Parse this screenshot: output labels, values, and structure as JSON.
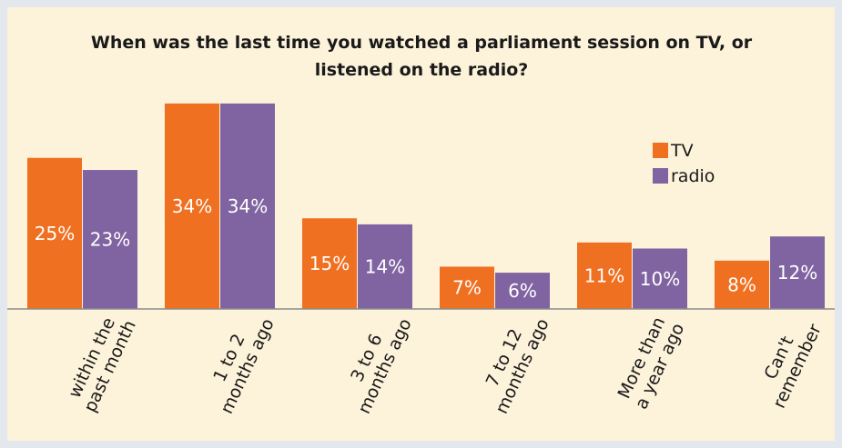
{
  "colors": {
    "frame_bg": "#e3e8ee",
    "panel_bg": "#fdf2da",
    "tv": "#f07022",
    "radio": "#8064a2",
    "axis": "#8c8c8c",
    "text": "#1a1a1a",
    "value_text": "#ffffff"
  },
  "chart_data": {
    "type": "bar",
    "title": "When was the last time you watched a parliament session on TV, or listened on the radio?",
    "categories": [
      [
        "within the",
        "past month"
      ],
      [
        "1 to 2",
        "months ago"
      ],
      [
        "3 to 6",
        "months ago"
      ],
      [
        "7 to 12",
        "months ago"
      ],
      [
        "More than",
        "a year ago"
      ],
      [
        "Can't",
        "remember"
      ]
    ],
    "series": [
      {
        "name": "TV",
        "color": "#f07022",
        "values": [
          25,
          34,
          15,
          7,
          11,
          8
        ],
        "labels": [
          "25%",
          "34%",
          "15%",
          "7%",
          "11%",
          "8%"
        ]
      },
      {
        "name": "radio",
        "color": "#8064a2",
        "values": [
          23,
          34,
          14,
          6,
          10,
          12
        ],
        "labels": [
          "23%",
          "34%",
          "14%",
          "6%",
          "10%",
          "12%"
        ]
      }
    ],
    "ylim": [
      0,
      40
    ],
    "grid": false,
    "legend_position": "right"
  }
}
